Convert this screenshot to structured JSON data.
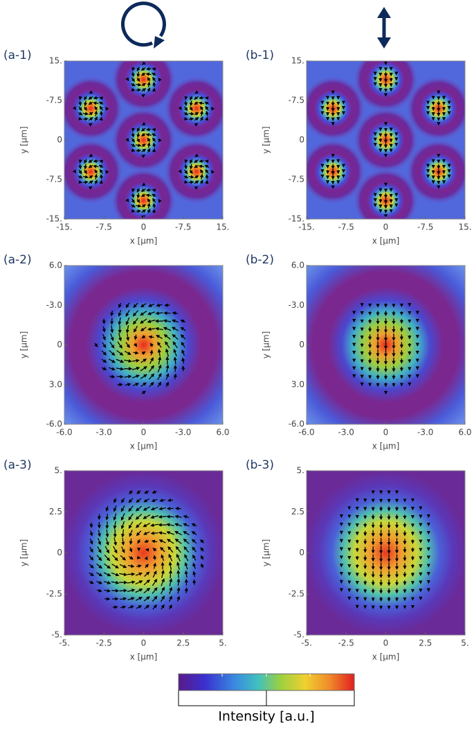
{
  "panels": [
    {
      "label": "(a-1)",
      "xlabel": "x [μm]",
      "ylabel": "y [μm]",
      "xticks": [
        "-15.",
        "-7.5",
        "0",
        "-7.5",
        "15."
      ],
      "yticks": [
        "15.",
        "-7.5",
        "0",
        "-7.5",
        "-15."
      ]
    },
    {
      "label": "(b-1)",
      "xlabel": "x [μm]",
      "ylabel": "y [μm]",
      "xticks": [
        "-15.",
        "-7.5",
        "0",
        "-7.5",
        "15."
      ],
      "yticks": [
        "15.",
        "-7.5",
        "0",
        "-7.5",
        "-15."
      ]
    },
    {
      "label": "(a-2)",
      "xlabel": "x [μm]",
      "ylabel": "y [μm]",
      "xticks": [
        "-6.0",
        "-3.0",
        "0",
        "-3.0",
        "6.0"
      ],
      "yticks": [
        "6.0",
        "-3.0",
        "0",
        "3.0",
        "-6.0"
      ]
    },
    {
      "label": "(b-2)",
      "xlabel": "x [μm]",
      "ylabel": "y [μm]",
      "xticks": [
        "-6.0",
        "-3.0",
        "0",
        "-3.0",
        "6.0"
      ],
      "yticks": [
        "6.0",
        "-3.0",
        "0",
        "3.0",
        "-6.0"
      ]
    },
    {
      "label": "(a-3)",
      "xlabel": "x [μm]",
      "ylabel": "y [μm]",
      "xticks": [
        "-5.",
        "-2.5",
        "0",
        "2.5",
        "5."
      ],
      "yticks": [
        "5.",
        "2.5",
        "0",
        "-2.5",
        "-5."
      ]
    },
    {
      "label": "(b-3)",
      "xlabel": "x [μm]",
      "ylabel": "y [μm]",
      "xticks": [
        "-5.",
        "-2.5",
        "0",
        "2.5",
        "5."
      ],
      "yticks": [
        "5.",
        "2.5",
        "0",
        "-2.5",
        "-5."
      ]
    }
  ],
  "colorbar": {
    "label": "Intensity [a.u.]"
  }
}
